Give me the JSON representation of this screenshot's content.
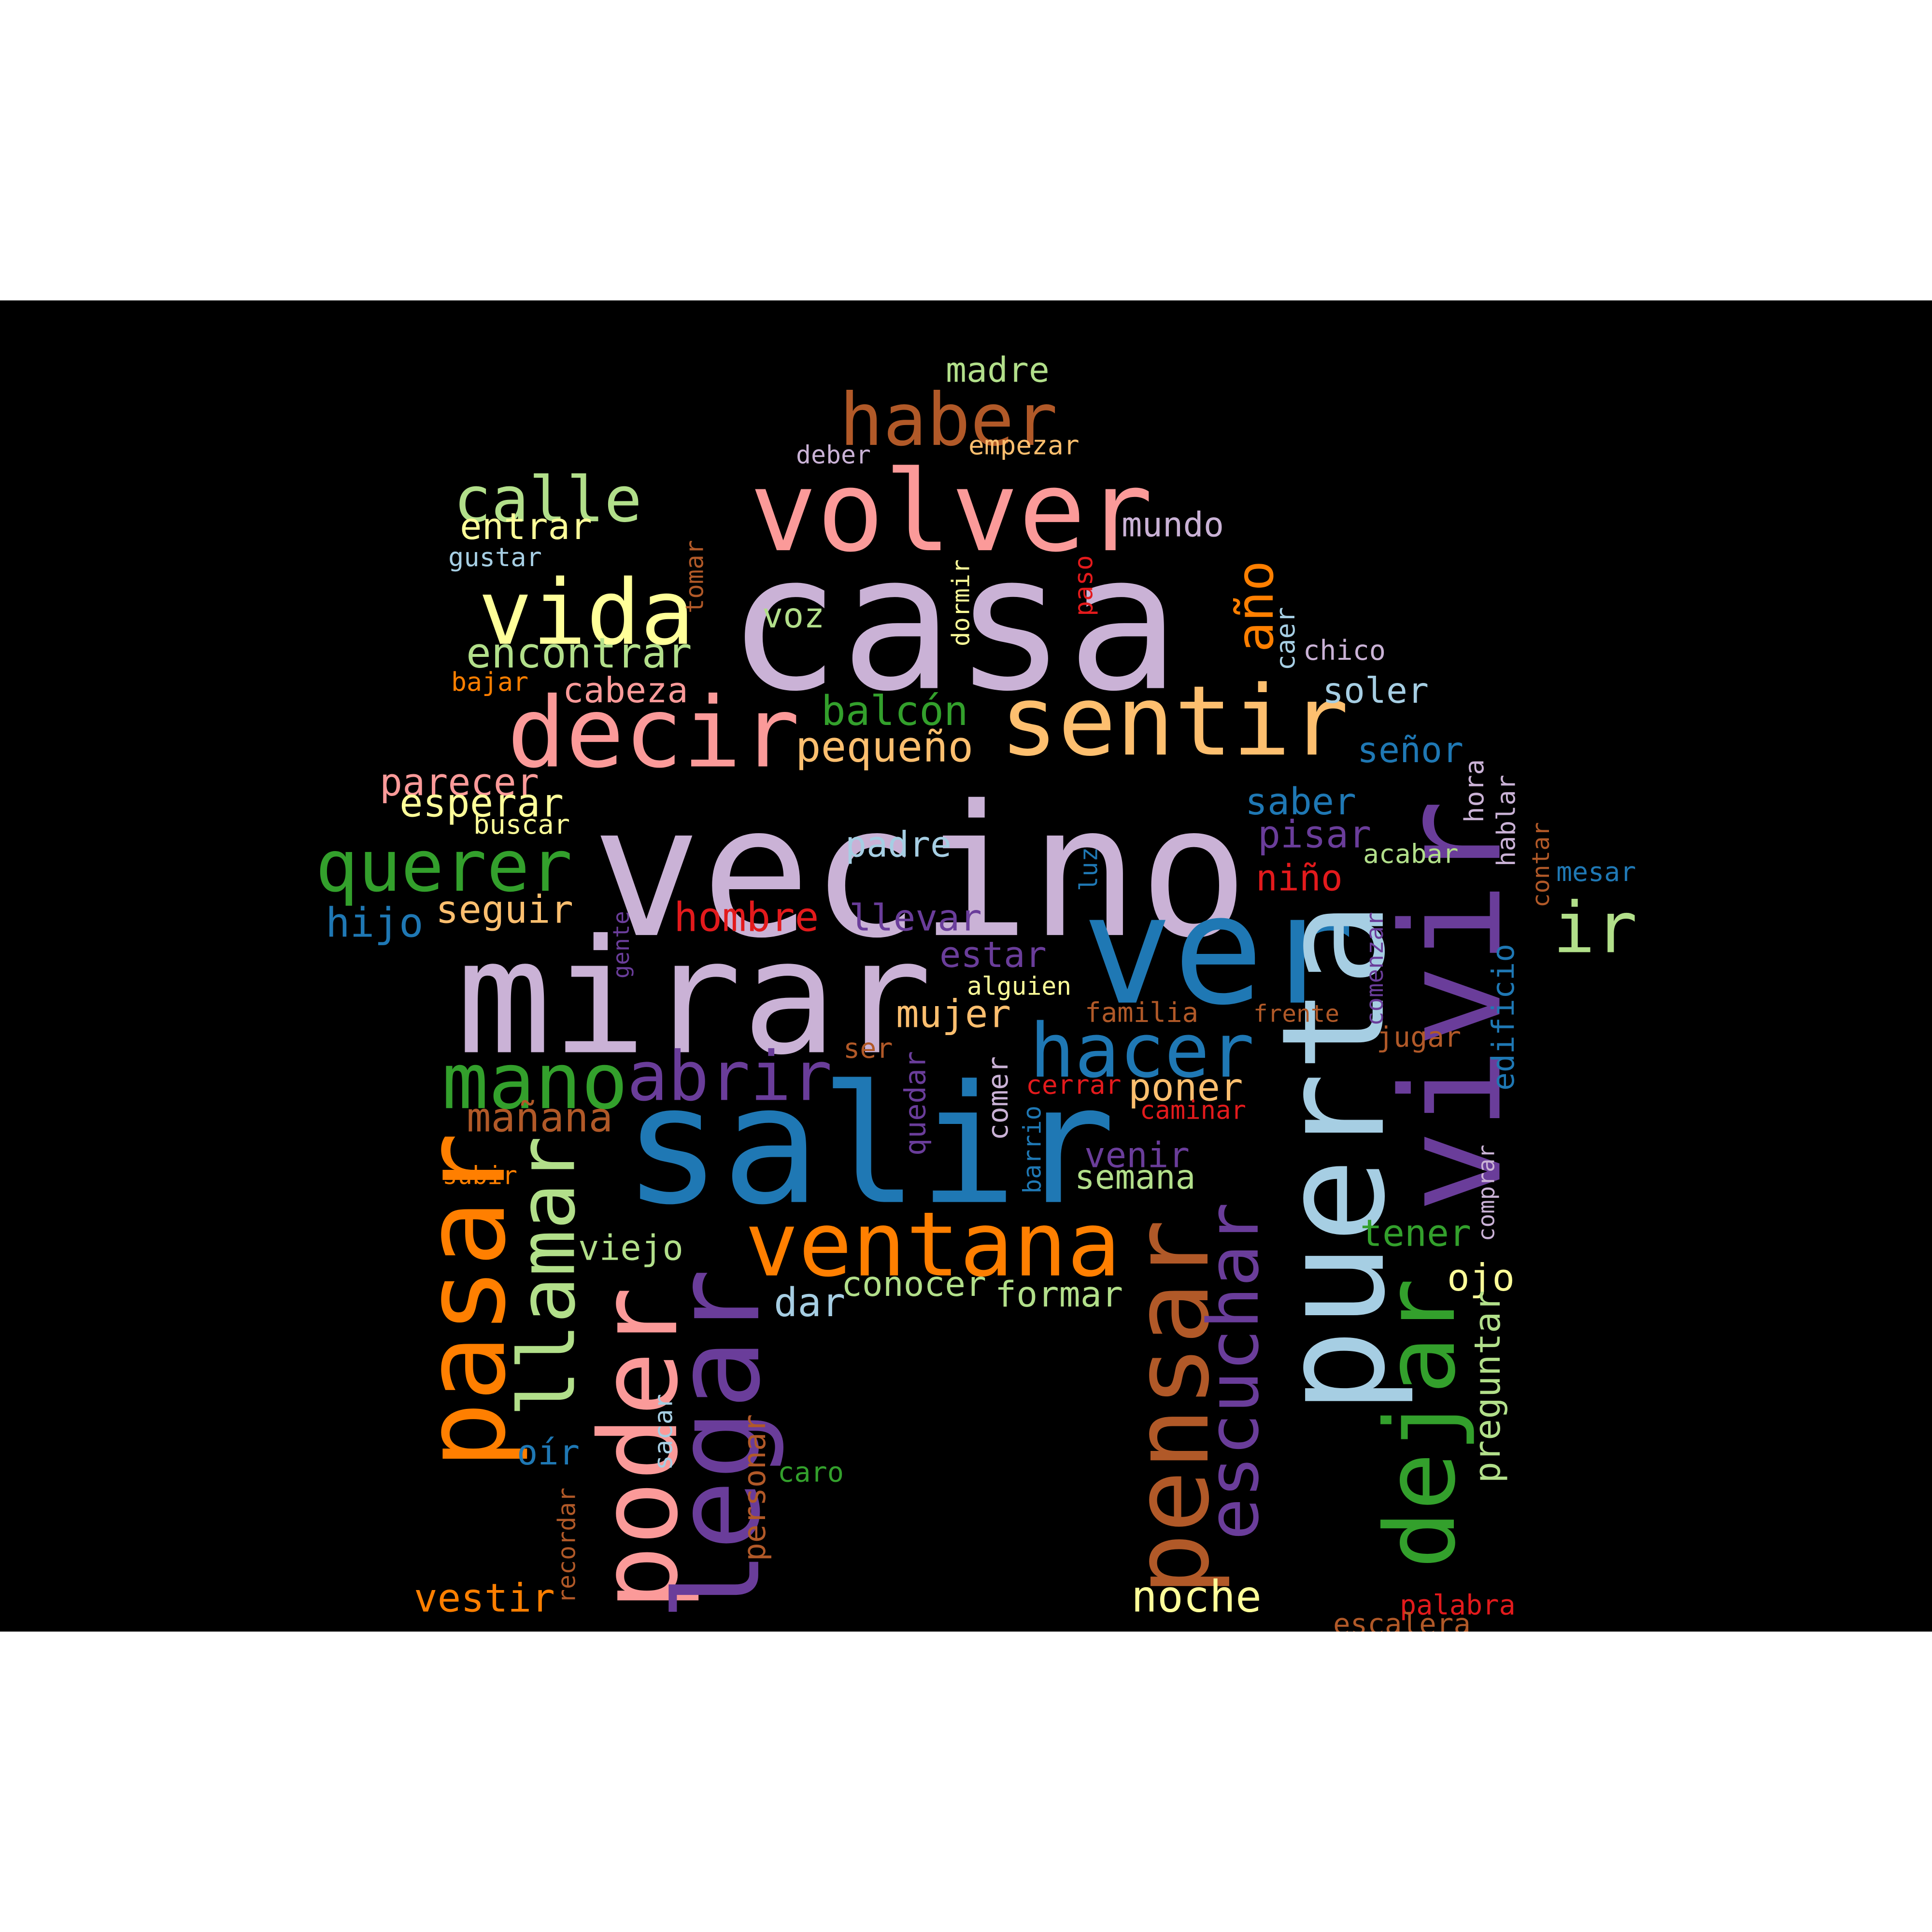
{
  "words": [
    {
      "text": "casa",
      "color": "#cab2d6"
    },
    {
      "text": "vecino",
      "color": "#cab2d6"
    },
    {
      "text": "mirar",
      "color": "#cab2d6"
    },
    {
      "text": "salir",
      "color": "#1f78b4"
    },
    {
      "text": "ver",
      "color": "#1f78b4"
    },
    {
      "text": "puerta",
      "color": "#a6cee3"
    },
    {
      "text": "vivir",
      "color": "#6a3d9a"
    },
    {
      "text": "volver",
      "color": "#fb9a99"
    },
    {
      "text": "decir",
      "color": "#fb9a99"
    },
    {
      "text": "sentir",
      "color": "#fdbf6f"
    },
    {
      "text": "pasar",
      "color": "#ff7f00"
    },
    {
      "text": "haber",
      "color": "#b15928"
    },
    {
      "text": "vida",
      "color": "#ffff99"
    },
    {
      "text": "calle",
      "color": "#b2df8a"
    },
    {
      "text": "querer",
      "color": "#33a02c"
    },
    {
      "text": "hacer",
      "color": "#1f78b4"
    },
    {
      "text": "ventana",
      "color": "#ff7f00"
    },
    {
      "text": "poder",
      "color": "#fb9a99"
    },
    {
      "text": "llegar",
      "color": "#6a3d9a"
    },
    {
      "text": "pensar",
      "color": "#b15928"
    },
    {
      "text": "dejar",
      "color": "#33a02c"
    },
    {
      "text": "mano",
      "color": "#33a02c"
    },
    {
      "text": "abrir",
      "color": "#6a3d9a"
    },
    {
      "text": "escuchar",
      "color": "#6a3d9a"
    },
    {
      "text": "año",
      "color": "#ff7f00"
    },
    {
      "text": "llamar",
      "color": "#b2df8a"
    },
    {
      "text": "ir",
      "color": "#b2df8a"
    },
    {
      "text": "madre",
      "color": "#b2df8a"
    },
    {
      "text": "empezar",
      "color": "#fdbf6f"
    },
    {
      "text": "deber",
      "color": "#cab2d6"
    },
    {
      "text": "mundo",
      "color": "#cab2d6"
    },
    {
      "text": "entrar",
      "color": "#ffff99"
    },
    {
      "text": "gustar",
      "color": "#a6cee3"
    },
    {
      "text": "tomar",
      "color": "#b15928"
    },
    {
      "text": "dormir",
      "color": "#ffff99"
    },
    {
      "text": "paso",
      "color": "#e31a1c"
    },
    {
      "text": "caer",
      "color": "#a6cee3"
    },
    {
      "text": "chico",
      "color": "#cab2d6"
    },
    {
      "text": "voz",
      "color": "#b2df8a"
    },
    {
      "text": "encontrar",
      "color": "#b2df8a"
    },
    {
      "text": "bajar",
      "color": "#ff7f00"
    },
    {
      "text": "cabeza",
      "color": "#fb9a99"
    },
    {
      "text": "balcón",
      "color": "#33a02c"
    },
    {
      "text": "soler",
      "color": "#a6cee3"
    },
    {
      "text": "pequeño",
      "color": "#fdbf6f"
    },
    {
      "text": "señor",
      "color": "#1f78b4"
    },
    {
      "text": "hora",
      "color": "#cab2d6"
    },
    {
      "text": "parecer",
      "color": "#fb9a99"
    },
    {
      "text": "esperar",
      "color": "#ffff99"
    },
    {
      "text": "buscar",
      "color": "#ffff99"
    },
    {
      "text": "saber",
      "color": "#1f78b4"
    },
    {
      "text": "pisar",
      "color": "#6a3d9a"
    },
    {
      "text": "padre",
      "color": "#a6cee3"
    },
    {
      "text": "luz",
      "color": "#1f78b4"
    },
    {
      "text": "acabar",
      "color": "#b2df8a"
    },
    {
      "text": "hablar",
      "color": "#cab2d6"
    },
    {
      "text": "contar",
      "color": "#b15928"
    },
    {
      "text": "mesar",
      "color": "#1f78b4"
    },
    {
      "text": "niño",
      "color": "#e31a1c"
    },
    {
      "text": "hijo",
      "color": "#1f78b4"
    },
    {
      "text": "seguir",
      "color": "#fdbf6f"
    },
    {
      "text": "hombre",
      "color": "#e31a1c"
    },
    {
      "text": "llevar",
      "color": "#6a3d9a"
    },
    {
      "text": "gente",
      "color": "#6a3d9a"
    },
    {
      "text": "estar",
      "color": "#6a3d9a"
    },
    {
      "text": "alguien",
      "color": "#ffff99"
    },
    {
      "text": "comenzar",
      "color": "#6a3d9a"
    },
    {
      "text": "edificio",
      "color": "#1f78b4"
    },
    {
      "text": "mujer",
      "color": "#fdbf6f"
    },
    {
      "text": "familia",
      "color": "#b15928"
    },
    {
      "text": "frente",
      "color": "#b15928"
    },
    {
      "text": "jugar",
      "color": "#b15928"
    },
    {
      "text": "ser",
      "color": "#b15928"
    },
    {
      "text": "quedar",
      "color": "#6a3d9a"
    },
    {
      "text": "comer",
      "color": "#cab2d6"
    },
    {
      "text": "cerrar",
      "color": "#e31a1c"
    },
    {
      "text": "poner",
      "color": "#fdbf6f"
    },
    {
      "text": "mañana",
      "color": "#b15928"
    },
    {
      "text": "caminar",
      "color": "#e31a1c"
    },
    {
      "text": "barrio",
      "color": "#1f78b4"
    },
    {
      "text": "venir",
      "color": "#6a3d9a"
    },
    {
      "text": "comprar",
      "color": "#cab2d6"
    },
    {
      "text": "subir",
      "color": "#ff7f00"
    },
    {
      "text": "semana",
      "color": "#b2df8a"
    },
    {
      "text": "tener",
      "color": "#33a02c"
    },
    {
      "text": "viejo",
      "color": "#b2df8a"
    },
    {
      "text": "conocer",
      "color": "#b2df8a"
    },
    {
      "text": "formar",
      "color": "#b2df8a"
    },
    {
      "text": "ojo",
      "color": "#ffff99"
    },
    {
      "text": "dar",
      "color": "#a6cee3"
    },
    {
      "text": "preguntar",
      "color": "#b2df8a"
    },
    {
      "text": "oír",
      "color": "#1f78b4"
    },
    {
      "text": "sacar",
      "color": "#a6cee3"
    },
    {
      "text": "caro",
      "color": "#33a02c"
    },
    {
      "text": "personar",
      "color": "#b15928"
    },
    {
      "text": "recordar",
      "color": "#b15928"
    },
    {
      "text": "vestir",
      "color": "#ff7f00"
    },
    {
      "text": "noche",
      "color": "#ffff99"
    },
    {
      "text": "palabra",
      "color": "#e31a1c"
    },
    {
      "text": "escalera",
      "color": "#b15928"
    }
  ]
}
